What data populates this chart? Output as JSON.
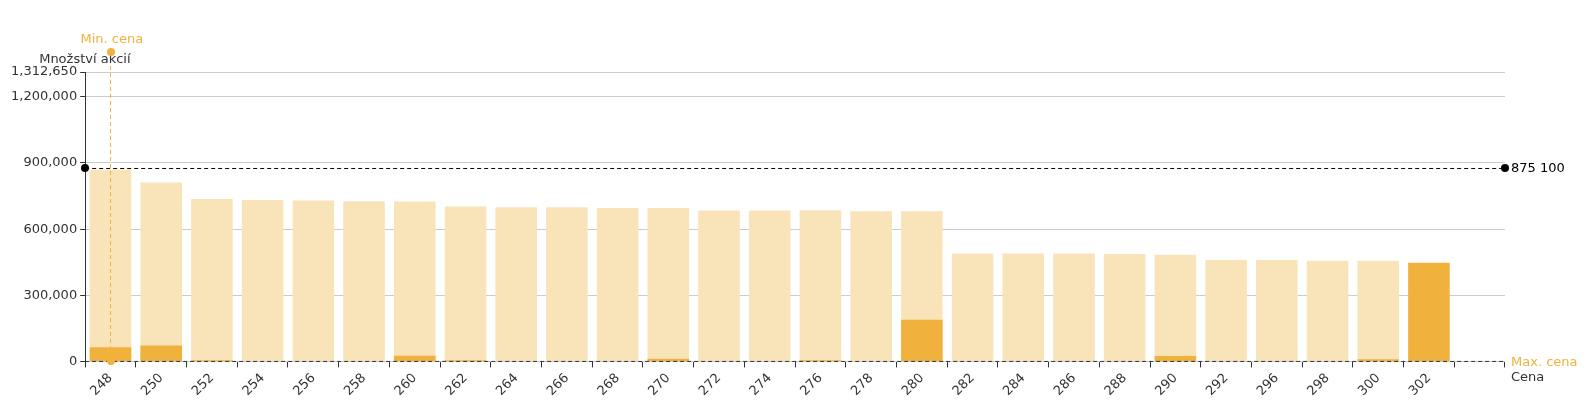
{
  "chart_data": {
    "type": "bar",
    "xlabel": "Cena",
    "ylabel": "Množství akcií",
    "categories": [
      "248",
      "250",
      "252",
      "254",
      "256",
      "258",
      "260",
      "262",
      "264",
      "266",
      "268",
      "270",
      "272",
      "274",
      "276",
      "278",
      "280",
      "282",
      "284",
      "286",
      "288",
      "290",
      "292",
      "296",
      "298",
      "300",
      "302",
      null
    ],
    "series": [
      {
        "color": "#f0b23c",
        "values": [
          64000,
          72000,
          5000,
          null,
          null,
          null,
          26000,
          5000,
          null,
          null,
          null,
          12000,
          null,
          null,
          5000,
          null,
          189000,
          null,
          null,
          null,
          null,
          25000,
          null,
          null,
          null,
          10000,
          448000,
          null
        ]
      },
      {
        "color": "#f9e3b9",
        "values": [
          870000,
          811000,
          737000,
          732000,
          730000,
          727000,
          725000,
          703000,
          699000,
          699000,
          696000,
          696000,
          684000,
          684000,
          686000,
          681000,
          681000,
          489000,
          489000,
          489000,
          487000,
          484000,
          460000,
          460000,
          457000,
          457000,
          null,
          null
        ]
      }
    ],
    "ylim": [
      0,
      1312650
    ],
    "yticks": [
      0,
      {
        "value": 300000,
        "label": "300,000"
      },
      {
        "value": 600000,
        "label": "600,000"
      },
      {
        "value": 900000,
        "label": "900,000"
      },
      {
        "value": 1200000,
        "label": "1,200,000"
      },
      {
        "value": 1312650,
        "label": "1,312,650"
      }
    ],
    "grid": "y",
    "legend": false,
    "ref_lines": [
      {
        "axis": "y",
        "value": 875100,
        "label": "875 100",
        "color": "#000000",
        "line_style": "dashed"
      },
      {
        "axis": "x",
        "value": "248",
        "label": "Min. cena",
        "color": "#f0b23c",
        "line_style": "dashed"
      }
    ],
    "annotations": [
      "Max. cena"
    ]
  }
}
